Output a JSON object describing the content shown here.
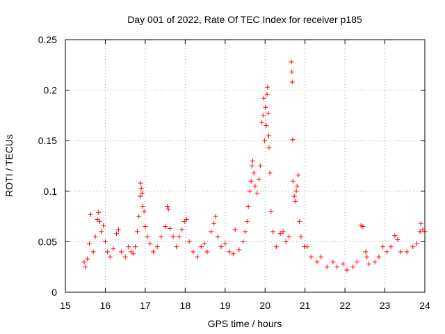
{
  "chart_data": {
    "type": "scatter",
    "title": "Day 001 of 2022, Rate Of TEC Index for receiver p185",
    "xlabel": "GPS time / hours",
    "ylabel": "ROTI / TECUs",
    "xlim": [
      15,
      24
    ],
    "ylim": [
      0,
      0.25
    ],
    "xticks": [
      "15",
      "16",
      "17",
      "18",
      "19",
      "20",
      "21",
      "22",
      "23",
      "24"
    ],
    "yticks": [
      "0",
      "0.05",
      "0.1",
      "0.15",
      "0.2",
      "0.25"
    ],
    "xtick_values": [
      15,
      16,
      17,
      18,
      19,
      20,
      21,
      22,
      23,
      24
    ],
    "ytick_values": [
      0,
      0.05,
      0.1,
      0.15,
      0.2,
      0.25
    ],
    "grid": true,
    "marker": "+",
    "series_color": "#ff0000",
    "series": [
      {
        "name": "ROTI",
        "points": [
          [
            15.47,
            0.03
          ],
          [
            15.5,
            0.025
          ],
          [
            15.55,
            0.033
          ],
          [
            15.6,
            0.048
          ],
          [
            15.63,
            0.077
          ],
          [
            15.7,
            0.04
          ],
          [
            15.75,
            0.055
          ],
          [
            15.8,
            0.072
          ],
          [
            15.83,
            0.079
          ],
          [
            15.86,
            0.07
          ],
          [
            15.9,
            0.06
          ],
          [
            15.95,
            0.066
          ],
          [
            16.0,
            0.05
          ],
          [
            16.05,
            0.04
          ],
          [
            16.12,
            0.035
          ],
          [
            16.2,
            0.043
          ],
          [
            16.28,
            0.058
          ],
          [
            16.33,
            0.062
          ],
          [
            16.4,
            0.04
          ],
          [
            16.5,
            0.035
          ],
          [
            16.58,
            0.045
          ],
          [
            16.65,
            0.04
          ],
          [
            16.7,
            0.038
          ],
          [
            16.75,
            0.045
          ],
          [
            16.8,
            0.06
          ],
          [
            16.84,
            0.075
          ],
          [
            16.87,
            0.095
          ],
          [
            16.88,
            0.108
          ],
          [
            16.9,
            0.103
          ],
          [
            16.92,
            0.098
          ],
          [
            16.94,
            0.085
          ],
          [
            16.97,
            0.08
          ],
          [
            17.0,
            0.065
          ],
          [
            17.05,
            0.055
          ],
          [
            17.12,
            0.048
          ],
          [
            17.2,
            0.04
          ],
          [
            17.3,
            0.045
          ],
          [
            17.4,
            0.055
          ],
          [
            17.5,
            0.065
          ],
          [
            17.55,
            0.085
          ],
          [
            17.58,
            0.082
          ],
          [
            17.62,
            0.063
          ],
          [
            17.7,
            0.055
          ],
          [
            17.78,
            0.045
          ],
          [
            17.85,
            0.055
          ],
          [
            17.92,
            0.062
          ],
          [
            17.98,
            0.07
          ],
          [
            18.03,
            0.072
          ],
          [
            18.1,
            0.05
          ],
          [
            18.2,
            0.04
          ],
          [
            18.3,
            0.035
          ],
          [
            18.4,
            0.045
          ],
          [
            18.48,
            0.048
          ],
          [
            18.55,
            0.04
          ],
          [
            18.65,
            0.06
          ],
          [
            18.72,
            0.068
          ],
          [
            18.76,
            0.075
          ],
          [
            18.82,
            0.055
          ],
          [
            18.9,
            0.045
          ],
          [
            19.0,
            0.048
          ],
          [
            19.1,
            0.04
          ],
          [
            19.2,
            0.038
          ],
          [
            19.25,
            0.062
          ],
          [
            19.35,
            0.042
          ],
          [
            19.45,
            0.05
          ],
          [
            19.5,
            0.06
          ],
          [
            19.55,
            0.07
          ],
          [
            19.58,
            0.085
          ],
          [
            19.62,
            0.1
          ],
          [
            19.65,
            0.11
          ],
          [
            19.67,
            0.125
          ],
          [
            19.69,
            0.13
          ],
          [
            19.72,
            0.118
          ],
          [
            19.75,
            0.105
          ],
          [
            19.8,
            0.098
          ],
          [
            19.85,
            0.112
          ],
          [
            19.88,
            0.125
          ],
          [
            19.92,
            0.168
          ],
          [
            19.95,
            0.175
          ],
          [
            19.97,
            0.192
          ],
          [
            19.99,
            0.15
          ],
          [
            20.01,
            0.183
          ],
          [
            20.03,
            0.165
          ],
          [
            20.05,
            0.196
          ],
          [
            20.06,
            0.203
          ],
          [
            20.08,
            0.177
          ],
          [
            20.09,
            0.155
          ],
          [
            20.1,
            0.143
          ],
          [
            20.12,
            0.118
          ],
          [
            20.15,
            0.08
          ],
          [
            20.2,
            0.06
          ],
          [
            20.28,
            0.045
          ],
          [
            20.38,
            0.058
          ],
          [
            20.45,
            0.06
          ],
          [
            20.52,
            0.05
          ],
          [
            20.6,
            0.055
          ],
          [
            20.66,
            0.228
          ],
          [
            20.67,
            0.218
          ],
          [
            20.68,
            0.208
          ],
          [
            20.69,
            0.151
          ],
          [
            20.7,
            0.11
          ],
          [
            20.73,
            0.095
          ],
          [
            20.76,
            0.09
          ],
          [
            20.78,
            0.1
          ],
          [
            20.8,
            0.105
          ],
          [
            20.83,
            0.116
          ],
          [
            20.86,
            0.07
          ],
          [
            20.9,
            0.055
          ],
          [
            20.98,
            0.045
          ],
          [
            21.05,
            0.045
          ],
          [
            21.15,
            0.035
          ],
          [
            21.3,
            0.03
          ],
          [
            21.4,
            0.035
          ],
          [
            21.55,
            0.025
          ],
          [
            21.7,
            0.03
          ],
          [
            21.8,
            0.025
          ],
          [
            21.95,
            0.028
          ],
          [
            22.05,
            0.022
          ],
          [
            22.2,
            0.025
          ],
          [
            22.3,
            0.03
          ],
          [
            22.4,
            0.066
          ],
          [
            22.45,
            0.065
          ],
          [
            22.52,
            0.04
          ],
          [
            22.55,
            0.035
          ],
          [
            22.6,
            0.028
          ],
          [
            22.75,
            0.03
          ],
          [
            22.85,
            0.035
          ],
          [
            22.95,
            0.045
          ],
          [
            23.05,
            0.04
          ],
          [
            23.15,
            0.045
          ],
          [
            23.25,
            0.056
          ],
          [
            23.32,
            0.052
          ],
          [
            23.4,
            0.04
          ],
          [
            23.55,
            0.04
          ],
          [
            23.7,
            0.045
          ],
          [
            23.8,
            0.048
          ],
          [
            23.88,
            0.06
          ],
          [
            23.9,
            0.068
          ],
          [
            23.95,
            0.062
          ],
          [
            24.0,
            0.06
          ]
        ]
      }
    ]
  }
}
